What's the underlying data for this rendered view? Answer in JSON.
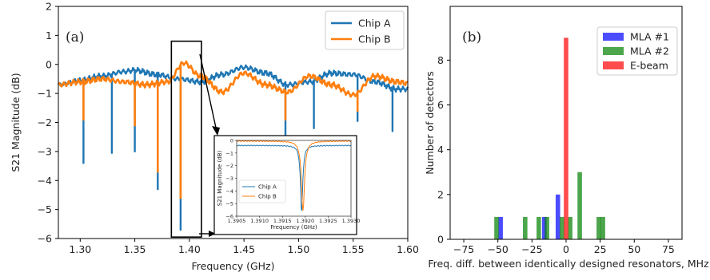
{
  "chart_data": [
    {
      "type": "line",
      "panel_label": "(a)",
      "xlabel": "Frequency (GHz)",
      "ylabel": "S21 Magnitude (dB)",
      "xlim": [
        1.28,
        1.6
      ],
      "ylim": [
        -6,
        2
      ],
      "x_ticks": [
        1.3,
        1.35,
        1.4,
        1.45,
        1.5,
        1.55,
        1.6
      ],
      "x_tick_labels": [
        "1.30",
        "1.35",
        "1.40",
        "1.45",
        "1.50",
        "1.55",
        "1.60"
      ],
      "y_ticks": [
        -6,
        -5,
        -4,
        -3,
        -2,
        -1,
        0,
        1,
        2
      ],
      "y_tick_labels": [
        "−6",
        "−5",
        "−4",
        "−3",
        "−2",
        "−1",
        "0",
        "1",
        "2"
      ],
      "legend": "top-right",
      "series": [
        {
          "name": "Chip A",
          "color": "#1f77b4",
          "x": [
            1.28,
            1.3,
            1.32,
            1.34,
            1.35,
            1.37,
            1.39,
            1.41,
            1.43,
            1.45,
            1.47,
            1.49,
            1.51,
            1.53,
            1.55,
            1.57,
            1.59,
            1.6
          ],
          "y": [
            -0.7,
            -0.55,
            -0.4,
            -0.25,
            -0.2,
            -0.35,
            -0.5,
            -0.6,
            -0.35,
            -0.1,
            -0.3,
            -0.7,
            -0.6,
            -0.3,
            -0.35,
            -0.6,
            -0.85,
            -0.85
          ],
          "dips": [
            {
              "x": 1.303,
              "y": -3.4
            },
            {
              "x": 1.329,
              "y": -3.05
            },
            {
              "x": 1.35,
              "y": -3.0
            },
            {
              "x": 1.371,
              "y": -4.3
            },
            {
              "x": 1.392,
              "y": -5.7
            },
            {
              "x": 1.488,
              "y": -2.45
            },
            {
              "x": 1.514,
              "y": -2.2
            },
            {
              "x": 1.554,
              "y": -1.95
            },
            {
              "x": 1.586,
              "y": -2.3
            }
          ]
        },
        {
          "name": "Chip B",
          "color": "#ff7f0e",
          "x": [
            1.28,
            1.3,
            1.32,
            1.34,
            1.36,
            1.38,
            1.395,
            1.41,
            1.43,
            1.45,
            1.47,
            1.49,
            1.51,
            1.53,
            1.55,
            1.57,
            1.59,
            1.6
          ],
          "y": [
            -0.7,
            -0.6,
            -0.5,
            -0.6,
            -0.7,
            -0.6,
            0.05,
            -0.4,
            -0.95,
            -0.3,
            -0.7,
            -0.95,
            -0.4,
            -0.7,
            -1.05,
            -0.4,
            -0.6,
            -0.65
          ],
          "dips": [
            {
              "x": 1.303,
              "y": -1.9
            },
            {
              "x": 1.35,
              "y": -2.1
            },
            {
              "x": 1.371,
              "y": -3.7
            },
            {
              "x": 1.392,
              "y": -4.6
            },
            {
              "x": 1.488,
              "y": -1.9
            },
            {
              "x": 1.554,
              "y": -1.6
            }
          ]
        }
      ],
      "inset": {
        "xlabel": "Frequency (GHz)",
        "ylabel": "S21 Magnitude (dB)",
        "xlim": [
          1.3905,
          1.393
        ],
        "ylim": [
          -6,
          0
        ],
        "x_tick_labels": [
          "1.3905",
          "1.3910",
          "1.3915",
          "1.3920",
          "1.3925",
          "1.3930"
        ],
        "y_tick_labels": [
          "0",
          "−1",
          "−2",
          "−3",
          "−4",
          "−5",
          "−6"
        ],
        "legend": "lower-left",
        "series": [
          {
            "name": "Chip A",
            "color": "#1f77b4",
            "baseline": -0.4,
            "center": 1.39192,
            "depth": -5.7,
            "width": 3e-05
          },
          {
            "name": "Chip B",
            "color": "#ff7f0e",
            "baseline": -0.05,
            "center": 1.39195,
            "depth": -5.6,
            "width": 4e-05
          }
        ]
      }
    },
    {
      "type": "bar",
      "panel_label": "(b)",
      "xlabel": "Freq. diff. between identically designed resonators, MHz",
      "ylabel": "Number of detectors",
      "xlim": [
        -85,
        85
      ],
      "ylim": [
        0,
        10.4
      ],
      "x_ticks": [
        -75,
        -50,
        -25,
        0,
        25,
        50,
        75
      ],
      "x_tick_labels": [
        "−75",
        "−50",
        "−25",
        "0",
        "25",
        "50",
        "75"
      ],
      "y_ticks": [
        0,
        2,
        4,
        6,
        8
      ],
      "y_tick_labels": [
        "0",
        "2",
        "4",
        "6",
        "8"
      ],
      "bin_width": 3.3,
      "legend": "top-right",
      "series": [
        {
          "name": "MLA #1",
          "color": "#0000ff",
          "bins": [
            {
              "x": -48,
              "count": 1
            },
            {
              "x": -16,
              "count": 1
            },
            {
              "x": -6,
              "count": 2
            }
          ]
        },
        {
          "name": "MLA #2",
          "color": "#008000",
          "bins": [
            {
              "x": -51,
              "count": 1
            },
            {
              "x": -30,
              "count": 1
            },
            {
              "x": -20,
              "count": 1
            },
            {
              "x": -14,
              "count": 1
            },
            {
              "x": -3,
              "count": 1
            },
            {
              "x": 3,
              "count": 1
            },
            {
              "x": 10,
              "count": 3
            },
            {
              "x": 24,
              "count": 1
            },
            {
              "x": 27,
              "count": 1
            }
          ]
        },
        {
          "name": "E-beam",
          "color": "#ff0000",
          "bins": [
            {
              "x": 0,
              "count": 9
            }
          ]
        }
      ]
    }
  ]
}
